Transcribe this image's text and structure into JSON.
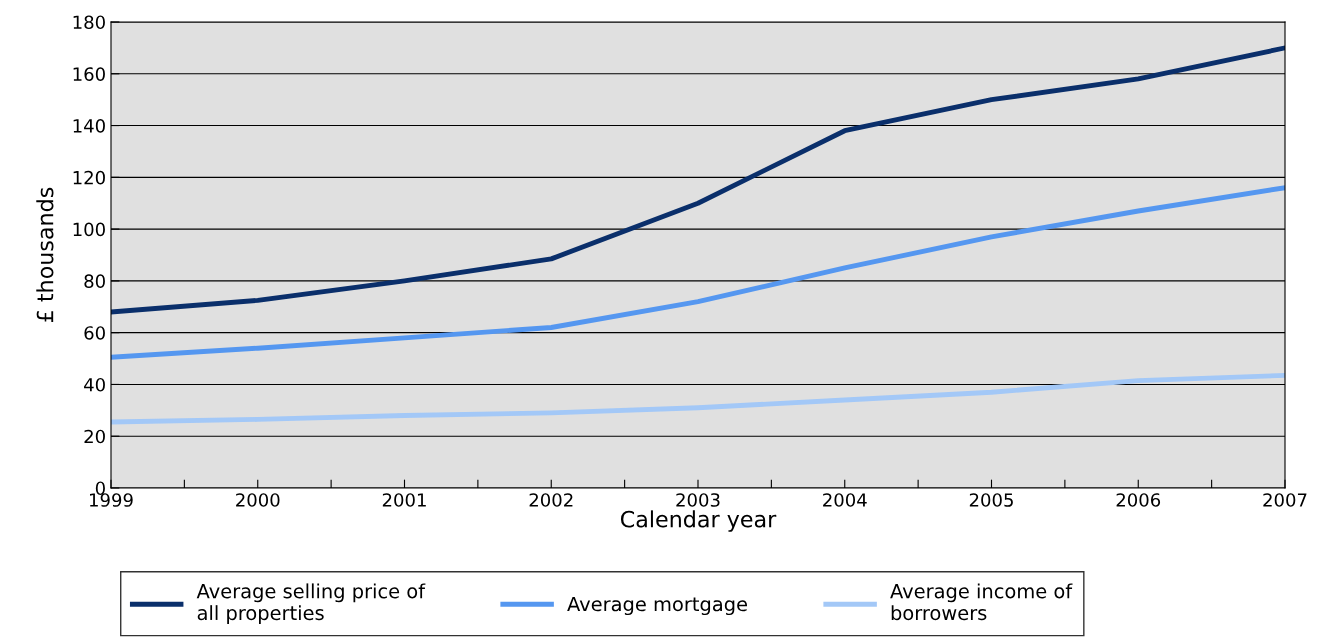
{
  "chart_data": {
    "type": "line",
    "xlabel": "Calendar year",
    "ylabel": "£ thousands",
    "x": [
      1999,
      2000,
      2001,
      2002,
      2003,
      2004,
      2005,
      2006,
      2007
    ],
    "series": [
      {
        "name": "Average selling price of\nall properties",
        "color": "#0a2f6b",
        "values": [
          68,
          72.5,
          80,
          88.5,
          110,
          138,
          150,
          158,
          170
        ]
      },
      {
        "name": "Average mortgage",
        "color": "#5597f0",
        "values": [
          50.5,
          54,
          58,
          62,
          72,
          85,
          97,
          107,
          116
        ]
      },
      {
        "name": "Average income of\nborrowers",
        "color": "#a3c8f7",
        "values": [
          25.5,
          26.5,
          28,
          29,
          31,
          34,
          37,
          41.5,
          43.5
        ]
      }
    ],
    "xlim": [
      1999,
      2007
    ],
    "xticks": [
      1999,
      {
        "value": 1999.5,
        "label": null
      },
      2000,
      {
        "value": 2000.5,
        "label": null
      },
      2001,
      {
        "value": 2001.5,
        "label": null
      },
      2002,
      {
        "value": 2002.5,
        "label": null
      },
      2003,
      {
        "value": 2003.5,
        "label": null
      },
      2004,
      {
        "value": 2004.5,
        "label": null
      },
      2005,
      {
        "value": 2005.5,
        "label": null
      },
      2006,
      {
        "value": 2006.5,
        "label": null
      },
      2007
    ],
    "ylim": [
      0,
      180
    ],
    "yticks": [
      0,
      20,
      40,
      60,
      80,
      100,
      120,
      140,
      160,
      180
    ],
    "grid": "y",
    "legend": "bottom",
    "marker": "none",
    "line_style": "solid"
  }
}
